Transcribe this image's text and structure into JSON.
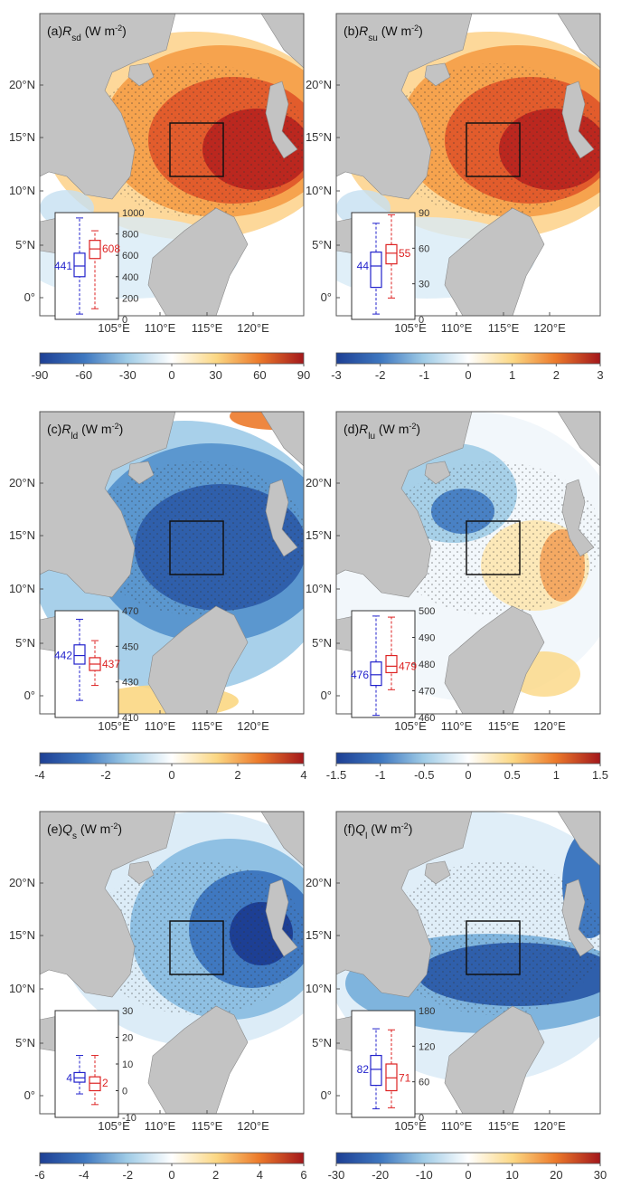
{
  "panels": [
    {
      "id": "a",
      "label": "(a)",
      "var_main": "R",
      "var_sub": "sd",
      "unit_main": "(W m",
      "unit_sup": "-2",
      "unit_end": ")",
      "scheme": "warm",
      "colorbar": {
        "ticks": [
          "-90",
          "-60",
          "-30",
          "0",
          "30",
          "60",
          "90"
        ]
      },
      "inset": {
        "ticks": [
          "1000",
          "800",
          "600",
          "400",
          "200",
          "0"
        ],
        "blue": {
          "label": "441",
          "q1": 0.4,
          "med": 0.5,
          "q3": 0.62,
          "wlo": 0.05,
          "whi": 0.95
        },
        "red": {
          "label": "608",
          "q1": 0.57,
          "med": 0.66,
          "q3": 0.74,
          "wlo": 0.1,
          "whi": 0.83
        }
      }
    },
    {
      "id": "b",
      "label": "(b)",
      "var_main": "R",
      "var_sub": "su",
      "unit_main": "(W m",
      "unit_sup": "-2",
      "unit_end": ")",
      "scheme": "warm",
      "colorbar": {
        "ticks": [
          "-3",
          "-2",
          "-1",
          "0",
          "1",
          "2",
          "3"
        ]
      },
      "inset": {
        "ticks": [
          "90",
          "60",
          "30",
          "0"
        ],
        "blue": {
          "label": "44",
          "q1": 0.3,
          "med": 0.5,
          "q3": 0.63,
          "wlo": 0.05,
          "whi": 0.9
        },
        "red": {
          "label": "55",
          "q1": 0.52,
          "med": 0.62,
          "q3": 0.7,
          "wlo": 0.2,
          "whi": 0.98
        }
      }
    },
    {
      "id": "c",
      "label": "(c)",
      "var_main": "R",
      "var_sub": "ld",
      "unit_main": "(W m",
      "unit_sup": "-2",
      "unit_end": ")",
      "scheme": "cold",
      "colorbar": {
        "ticks": [
          "-4",
          "-2",
          "0",
          "2",
          "4"
        ]
      },
      "inset": {
        "ticks": [
          "470",
          "450",
          "430",
          "410"
        ],
        "blue": {
          "label": "442",
          "q1": 0.5,
          "med": 0.58,
          "q3": 0.68,
          "wlo": 0.16,
          "whi": 0.92
        },
        "red": {
          "label": "437",
          "q1": 0.44,
          "med": 0.5,
          "q3": 0.56,
          "wlo": 0.3,
          "whi": 0.72
        }
      }
    },
    {
      "id": "d",
      "label": "(d)",
      "var_main": "R",
      "var_sub": "lu",
      "unit_main": "(W m",
      "unit_sup": "-2",
      "unit_end": ")",
      "scheme": "mixed",
      "colorbar": {
        "ticks": [
          "-1.5",
          "-1",
          "-0.5",
          "0",
          "0.5",
          "1",
          "1.5"
        ]
      },
      "inset": {
        "ticks": [
          "500",
          "490",
          "480",
          "470",
          "460"
        ],
        "blue": {
          "label": "476",
          "q1": 0.3,
          "med": 0.4,
          "q3": 0.52,
          "wlo": 0.02,
          "whi": 0.95
        },
        "red": {
          "label": "479",
          "q1": 0.42,
          "med": 0.48,
          "q3": 0.58,
          "wlo": 0.26,
          "whi": 0.94
        }
      }
    },
    {
      "id": "e",
      "label": "(e)",
      "var_main": "Q",
      "var_sub": "s",
      "unit_main": "(W m",
      "unit_sup": "-2",
      "unit_end": ")",
      "scheme": "blue",
      "colorbar": {
        "ticks": [
          "-6",
          "-4",
          "-2",
          "0",
          "2",
          "4",
          "6"
        ]
      },
      "inset": {
        "ticks": [
          "30",
          "20",
          "10",
          "0",
          "-10"
        ],
        "blue": {
          "label": "4",
          "q1": 0.33,
          "med": 0.37,
          "q3": 0.42,
          "wlo": 0.22,
          "whi": 0.58
        },
        "red": {
          "label": "2",
          "q1": 0.25,
          "med": 0.32,
          "q3": 0.38,
          "wlo": 0.12,
          "whi": 0.58
        }
      }
    },
    {
      "id": "f",
      "label": "(f)",
      "var_main": "Q",
      "var_sub": "l",
      "unit_main": "(W m",
      "unit_sup": "-2",
      "unit_end": ")",
      "scheme": "blue2",
      "colorbar": {
        "ticks": [
          "-30",
          "-20",
          "-10",
          "0",
          "10",
          "20",
          "30"
        ]
      },
      "inset": {
        "ticks": [
          "180",
          "120",
          "60",
          "0"
        ],
        "blue": {
          "label": "82",
          "q1": 0.3,
          "med": 0.45,
          "q3": 0.58,
          "wlo": 0.08,
          "whi": 0.83
        },
        "red": {
          "label": "71",
          "q1": 0.25,
          "med": 0.37,
          "q3": 0.5,
          "wlo": 0.09,
          "whi": 0.82
        }
      }
    }
  ],
  "axes": {
    "lat": [
      "20°N",
      "15°N",
      "10°N",
      "5°N",
      "0°"
    ],
    "lon": [
      "105°E",
      "110°E",
      "115°E",
      "120°E"
    ]
  },
  "colors": {
    "land": "#c3c3c3",
    "box": "#111111",
    "blue_box": "#2222cc",
    "red_box": "#dd2222"
  }
}
